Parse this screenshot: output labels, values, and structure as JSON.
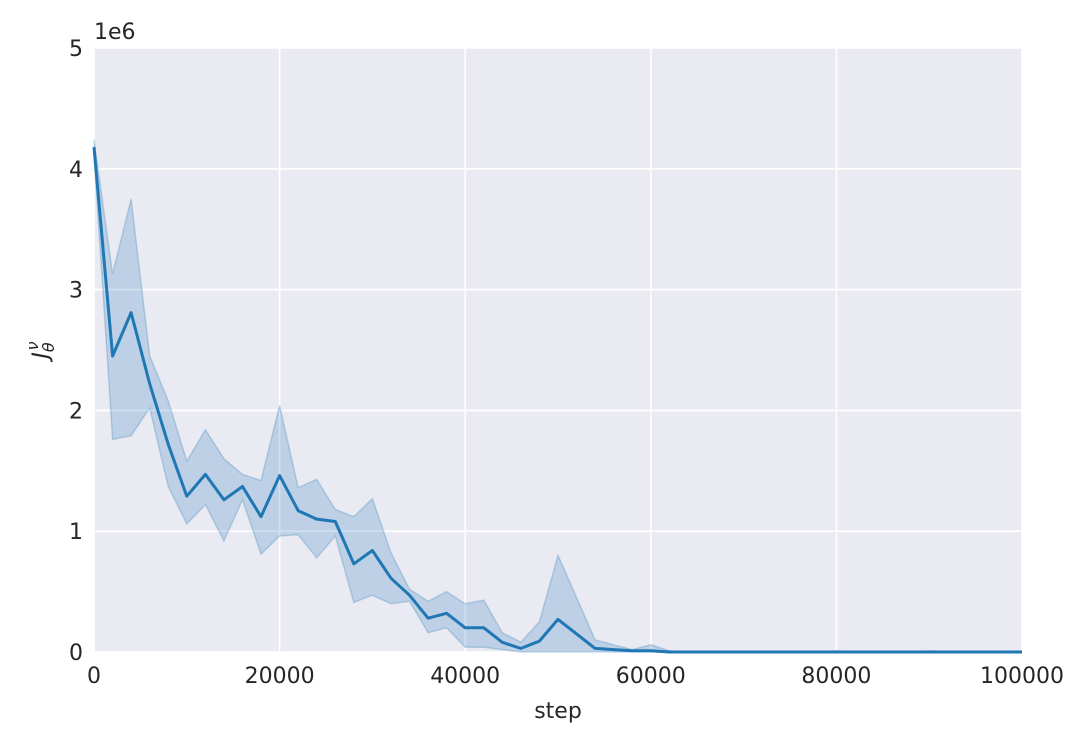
{
  "chart_data": {
    "type": "line",
    "xlabel": "step",
    "ylabel": "J_θ^ν",
    "ylabel_main": "J",
    "ylabel_sub": "θ",
    "ylabel_sup": "ν",
    "offset_text": "1e6",
    "xlim": [
      0,
      100000
    ],
    "ylim": [
      0,
      5
    ],
    "grid": true,
    "colors": {
      "background": "#eaeaf2",
      "grid": "#ffffff",
      "line": "#1f77b4",
      "band": "#1f77b4"
    },
    "x_ticks": [
      {
        "value": 0,
        "label": "0"
      },
      {
        "value": 20000,
        "label": "20000"
      },
      {
        "value": 40000,
        "label": "40000"
      },
      {
        "value": 60000,
        "label": "60000"
      },
      {
        "value": 80000,
        "label": "80000"
      },
      {
        "value": 100000,
        "label": "100000"
      }
    ],
    "y_ticks": [
      {
        "value": 0,
        "label": "0"
      },
      {
        "value": 1,
        "label": "1"
      },
      {
        "value": 2,
        "label": "2"
      },
      {
        "value": 3,
        "label": "3"
      },
      {
        "value": 4,
        "label": "4"
      },
      {
        "value": 5,
        "label": "5"
      }
    ],
    "series": [
      {
        "x": [
          0,
          2000,
          4000,
          6000,
          8000,
          10000,
          12000,
          14000,
          16000,
          18000,
          20000,
          22000,
          24000,
          26000,
          28000,
          30000,
          32000,
          34000,
          36000,
          38000,
          40000,
          42000,
          44000,
          46000,
          48000,
          50000,
          52000,
          54000,
          56000,
          58000,
          60000,
          62000,
          64000,
          66000,
          68000,
          70000,
          72000,
          74000,
          76000,
          78000,
          80000,
          82000,
          84000,
          86000,
          88000,
          90000,
          92000,
          94000,
          96000,
          98000,
          100000
        ],
        "y": [
          4.18,
          2.45,
          2.81,
          2.22,
          1.72,
          1.29,
          1.47,
          1.26,
          1.37,
          1.12,
          1.46,
          1.17,
          1.1,
          1.08,
          0.73,
          0.84,
          0.61,
          0.47,
          0.28,
          0.32,
          0.2,
          0.2,
          0.08,
          0.03,
          0.09,
          0.27,
          0.15,
          0.03,
          0.02,
          0.01,
          0.01,
          0.0,
          0.0,
          0.0,
          0.0,
          0.0,
          0.0,
          0.0,
          0.0,
          0.0,
          0.0,
          0.0,
          0.0,
          0.0,
          0.0,
          0.0,
          0.0,
          0.0,
          0.0,
          0.0,
          0.0
        ],
        "lower": [
          4.12,
          1.76,
          1.79,
          2.02,
          1.37,
          1.06,
          1.22,
          0.92,
          1.26,
          0.81,
          0.96,
          0.97,
          0.78,
          0.96,
          0.41,
          0.47,
          0.4,
          0.42,
          0.16,
          0.2,
          0.04,
          0.04,
          0.02,
          0.0,
          0.0,
          0.0,
          0.0,
          0.0,
          0.0,
          0.0,
          0.0,
          0.0,
          0.0,
          0.0,
          0.0,
          0.0,
          0.0,
          0.0,
          0.0,
          0.0,
          0.0,
          0.0,
          0.0,
          0.0,
          0.0,
          0.0,
          0.0,
          0.0,
          0.0,
          0.0,
          0.0
        ],
        "upper": [
          4.24,
          3.13,
          3.75,
          2.45,
          2.08,
          1.58,
          1.84,
          1.6,
          1.47,
          1.42,
          2.04,
          1.36,
          1.43,
          1.18,
          1.12,
          1.27,
          0.82,
          0.52,
          0.42,
          0.5,
          0.4,
          0.43,
          0.16,
          0.08,
          0.25,
          0.8,
          0.45,
          0.1,
          0.06,
          0.02,
          0.06,
          0.01,
          0.0,
          0.0,
          0.0,
          0.0,
          0.0,
          0.0,
          0.0,
          0.0,
          0.01,
          0.0,
          0.0,
          0.0,
          0.0,
          0.01,
          0.0,
          0.0,
          0.0,
          0.0,
          0.0
        ]
      }
    ]
  }
}
